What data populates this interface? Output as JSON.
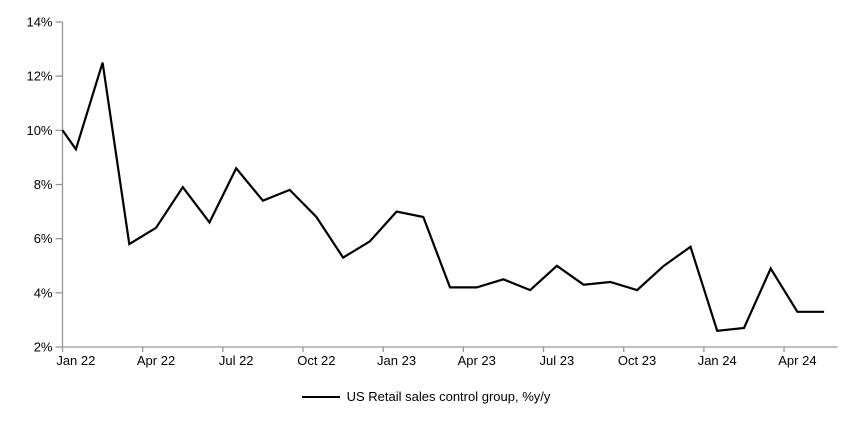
{
  "chart_data": {
    "type": "line",
    "title": "",
    "categories": [
      "Jan 22",
      "Feb 22",
      "Mar 22",
      "Apr 22",
      "May 22",
      "Jun 22",
      "Jul 22",
      "Aug 22",
      "Sep 22",
      "Oct 22",
      "Nov 22",
      "Dec 22",
      "Jan 23",
      "Feb 23",
      "Mar 23",
      "Apr 23",
      "May 23",
      "Jun 23",
      "Jul 23",
      "Aug 23",
      "Sep 23",
      "Oct 23",
      "Nov 23",
      "Dec 23",
      "Jan 24",
      "Feb 24",
      "Mar 24",
      "Apr 24",
      "May 24"
    ],
    "series": [
      {
        "name": "US Retail sales control group, %y/y",
        "color": "#000000",
        "values": [
          9.3,
          12.5,
          5.8,
          6.4,
          7.9,
          6.6,
          8.6,
          7.4,
          7.8,
          6.8,
          5.3,
          5.9,
          7.0,
          6.8,
          4.2,
          4.2,
          4.5,
          4.1,
          5.0,
          4.3,
          4.4,
          4.1,
          5.0,
          5.7,
          2.6,
          2.7,
          4.9,
          3.3,
          3.3
        ],
        "axis_entry_value": 10.0
      }
    ],
    "x_axis": {
      "tick_labels": [
        "Jan 22",
        "Apr 22",
        "Jul 22",
        "Oct 22",
        "Jan 23",
        "Apr 23",
        "Jul 23",
        "Oct 23",
        "Jan 24",
        "Apr 24"
      ],
      "label_interval_months": 3,
      "gridlines": false
    },
    "y_axis": {
      "min": 2,
      "max": 14,
      "step": 2,
      "unit": "%",
      "tick_labels": [
        "14%",
        "12%",
        "10%",
        "8%",
        "6%",
        "4%",
        "2%"
      ],
      "gridlines": false
    },
    "legend": {
      "position": "bottom-center",
      "label": "US Retail sales control group, %y/y"
    },
    "colors": {
      "series_line": "#000000",
      "axis": "#969696",
      "text": "#000000",
      "background": "#ffffff"
    }
  }
}
